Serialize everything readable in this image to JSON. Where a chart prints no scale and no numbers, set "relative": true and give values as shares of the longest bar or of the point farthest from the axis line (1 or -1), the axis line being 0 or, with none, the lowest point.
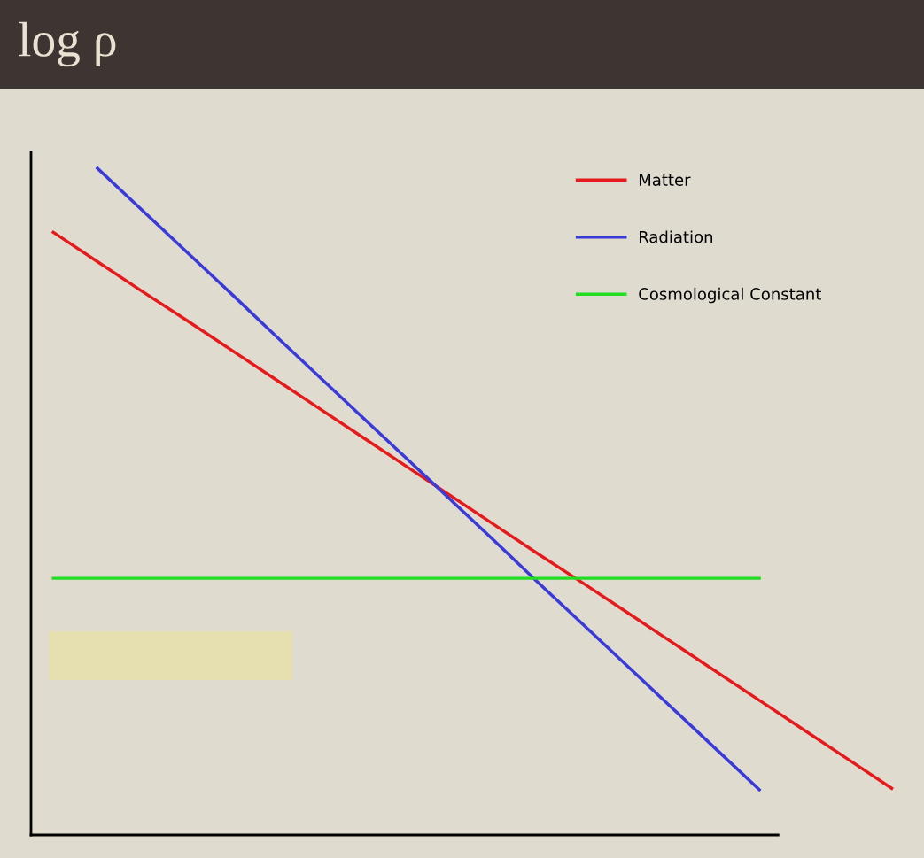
{
  "chart_data": {
    "type": "line",
    "title": "log ρ",
    "relative": true,
    "categories": [
      null,
      null,
      null,
      null,
      null,
      null,
      null,
      null,
      null,
      null,
      null,
      null,
      null,
      null,
      null,
      null,
      null,
      null,
      null,
      null
    ],
    "series": [
      {
        "name": "Matter",
        "color": "#e41a1c",
        "values": [
          0.904,
          0.86,
          0.816,
          0.773,
          0.729,
          0.685,
          0.641,
          0.597,
          0.553,
          0.509,
          0.465,
          0.421,
          0.378,
          0.334,
          0.29,
          0.246,
          0.202,
          0.158,
          0.114,
          0.07
        ]
      },
      {
        "name": "Radiation",
        "color": "#3a3ad8",
        "values": [
          null,
          1.0,
          0.938,
          0.876,
          0.814,
          0.751,
          0.689,
          0.627,
          0.565,
          0.503,
          0.441,
          0.378,
          0.316,
          0.254,
          0.192,
          0.13,
          0.068,
          null,
          null,
          null
        ]
      },
      {
        "name": "Cosmological Constant",
        "color": "#22dd22",
        "values": [
          0.385,
          0.385,
          0.385,
          0.385,
          0.385,
          0.385,
          0.385,
          0.385,
          0.385,
          0.385,
          0.385,
          0.385,
          0.385,
          0.385,
          0.385,
          0.385,
          0.385,
          null,
          null,
          null
        ]
      }
    ],
    "legend": "top right",
    "grid": false,
    "marker": "none",
    "line_style": "solid"
  }
}
